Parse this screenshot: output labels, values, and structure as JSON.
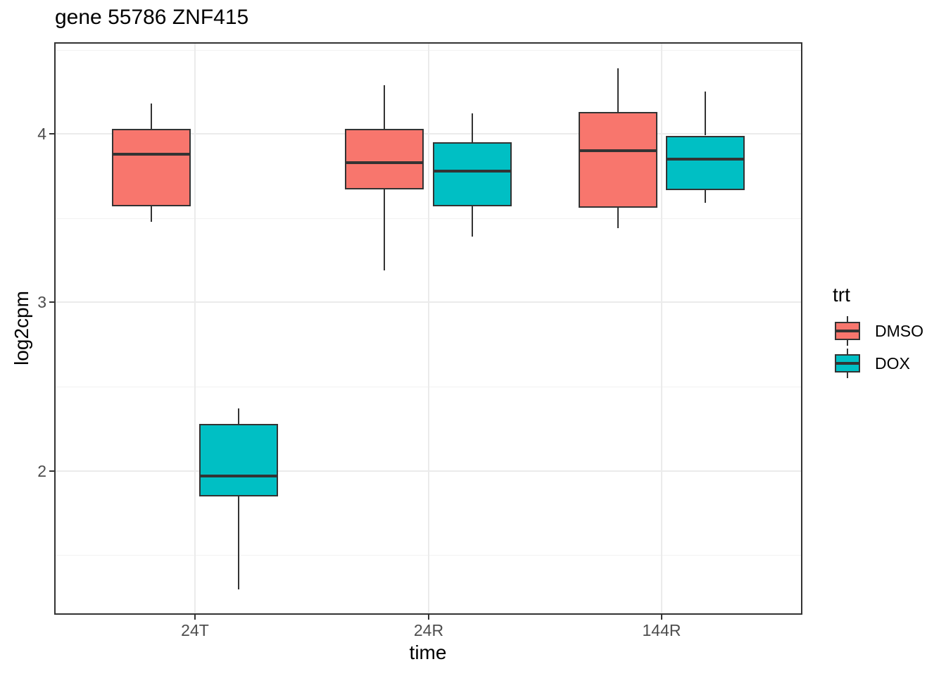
{
  "title": "gene 55786 ZNF415",
  "chart_data": {
    "type": "boxplot",
    "title": "gene 55786 ZNF415",
    "xlabel": "time",
    "ylabel": "log2cpm",
    "categories": [
      "24T",
      "24R",
      "144R"
    ],
    "ylim": [
      1.15,
      4.54
    ],
    "y_major_ticks": [
      2,
      3,
      4
    ],
    "y_minor_ticks": [
      1.5,
      2.5,
      3.5,
      4.5
    ],
    "grid": true,
    "legend": {
      "title": "trt",
      "position": "right",
      "entries": [
        {
          "label": "DMSO",
          "color": "#F8766D"
        },
        {
          "label": "DOX",
          "color": "#00BFC4"
        }
      ]
    },
    "series": [
      {
        "name": "DMSO",
        "color": "#F8766D",
        "boxes": [
          {
            "category": "24T",
            "whisker_low": 3.48,
            "q1": 3.57,
            "median": 3.88,
            "q3": 4.03,
            "whisker_high": 4.18
          },
          {
            "category": "24R",
            "whisker_low": 3.19,
            "q1": 3.67,
            "median": 3.83,
            "q3": 4.03,
            "whisker_high": 4.29
          },
          {
            "category": "144R",
            "whisker_low": 3.44,
            "q1": 3.56,
            "median": 3.9,
            "q3": 4.13,
            "whisker_high": 4.39
          }
        ]
      },
      {
        "name": "DOX",
        "color": "#00BFC4",
        "boxes": [
          {
            "category": "24T",
            "whisker_low": 1.3,
            "q1": 1.85,
            "median": 1.97,
            "q3": 2.28,
            "whisker_high": 2.37
          },
          {
            "category": "24R",
            "whisker_low": 3.39,
            "q1": 3.57,
            "median": 3.78,
            "q3": 3.95,
            "whisker_high": 4.12
          },
          {
            "category": "144R",
            "whisker_low": 3.59,
            "q1": 3.67,
            "median": 3.85,
            "q3": 3.99,
            "whisker_high": 4.25
          }
        ]
      }
    ],
    "colors": {
      "box_border": "#333333",
      "grid_major": "#EBEBEB",
      "grid_minor": "#F1F1F1",
      "axis_text": "#4D4D4D",
      "panel_border": "#333333",
      "background": "#FFFFFF"
    }
  }
}
